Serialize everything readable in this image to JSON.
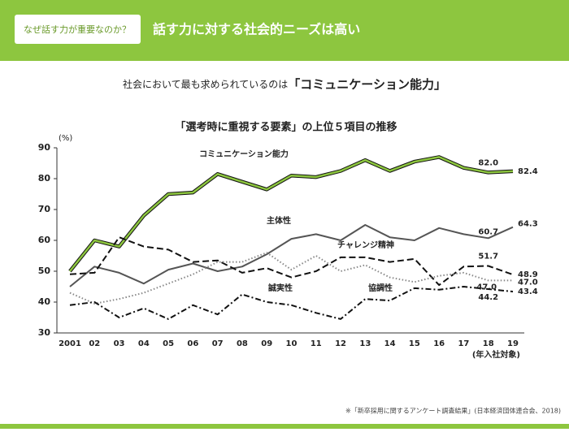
{
  "header": {
    "tag": "なぜ話す力が重要なのか？",
    "title": "話す力に対する社会的ニーズは高い"
  },
  "subtitle": {
    "lead": "社会において最も求められているのは",
    "emphasis": "「コミュニケーション能力」"
  },
  "chart_data": {
    "type": "line",
    "title": "「選考時に重視する要素」の上位５項目の推移",
    "y_unit": "(%)",
    "x_label": "(年入社対象)",
    "categories": [
      "2001",
      "02",
      "03",
      "04",
      "05",
      "06",
      "07",
      "08",
      "09",
      "10",
      "11",
      "12",
      "13",
      "14",
      "15",
      "16",
      "17",
      "18",
      "19"
    ],
    "ylim": [
      30,
      90
    ],
    "yticks": [
      30,
      40,
      50,
      60,
      70,
      80,
      90
    ],
    "series": [
      {
        "name": "コミュニケーション能力",
        "color": "#8dc63f",
        "dash": "solid",
        "values": [
          50,
          60,
          58,
          68,
          75,
          75.5,
          81.5,
          79,
          76.5,
          81,
          80.5,
          82.5,
          86,
          82.5,
          85.5,
          87,
          83.5,
          82,
          82.4
        ],
        "value_labels": [
          null,
          null,
          null,
          null,
          null,
          null,
          null,
          null,
          null,
          null,
          null,
          null,
          null,
          null,
          null,
          null,
          null,
          "82.0",
          "82.4"
        ]
      },
      {
        "name": "主体性",
        "color": "#555555",
        "dash": "solid",
        "values": [
          45,
          51.5,
          49.5,
          46,
          50.5,
          52.5,
          50,
          51.5,
          55.5,
          60.5,
          62,
          60,
          65,
          61,
          60,
          64,
          62,
          60.7,
          64.3
        ],
        "value_labels": [
          null,
          null,
          null,
          null,
          null,
          null,
          null,
          null,
          null,
          null,
          null,
          null,
          null,
          null,
          null,
          null,
          null,
          "60.7",
          "64.3"
        ]
      },
      {
        "name": "チャレンジ精神",
        "color": "#111111",
        "dash": "dashed",
        "values": [
          49,
          49.5,
          61,
          58,
          57,
          53,
          53.5,
          49.5,
          51,
          48,
          50,
          54.5,
          54.5,
          53,
          54,
          45.5,
          51.5,
          51.7,
          48.9
        ],
        "value_labels": [
          null,
          null,
          null,
          null,
          null,
          null,
          null,
          null,
          null,
          null,
          null,
          null,
          null,
          null,
          null,
          null,
          null,
          "51.7",
          "48.9"
        ]
      },
      {
        "name": "協調性",
        "color": "#888888",
        "dash": "dotted",
        "values": [
          43,
          39.5,
          41,
          43,
          46,
          49,
          53,
          53,
          56,
          50.5,
          55,
          50,
          52,
          48,
          46.5,
          48.5,
          49.5,
          47,
          47
        ],
        "value_labels": [
          null,
          null,
          null,
          null,
          null,
          null,
          null,
          null,
          null,
          null,
          null,
          null,
          null,
          null,
          null,
          null,
          null,
          "47.0",
          "47.0"
        ]
      },
      {
        "name": "誠実性",
        "color": "#111111",
        "dash": "dashdot",
        "values": [
          39,
          40,
          35,
          38,
          34.5,
          39,
          36,
          42.5,
          40,
          39,
          36.5,
          34.5,
          41,
          40.5,
          44.5,
          44,
          45,
          44.2,
          43.4
        ],
        "value_labels": [
          null,
          null,
          null,
          null,
          null,
          null,
          null,
          null,
          null,
          null,
          null,
          null,
          null,
          null,
          null,
          null,
          null,
          "44.2",
          "43.4"
        ]
      }
    ]
  },
  "footnote": "※「新卒採用に関するアンケート調査結果」(日本経済団体連合会、2018)"
}
